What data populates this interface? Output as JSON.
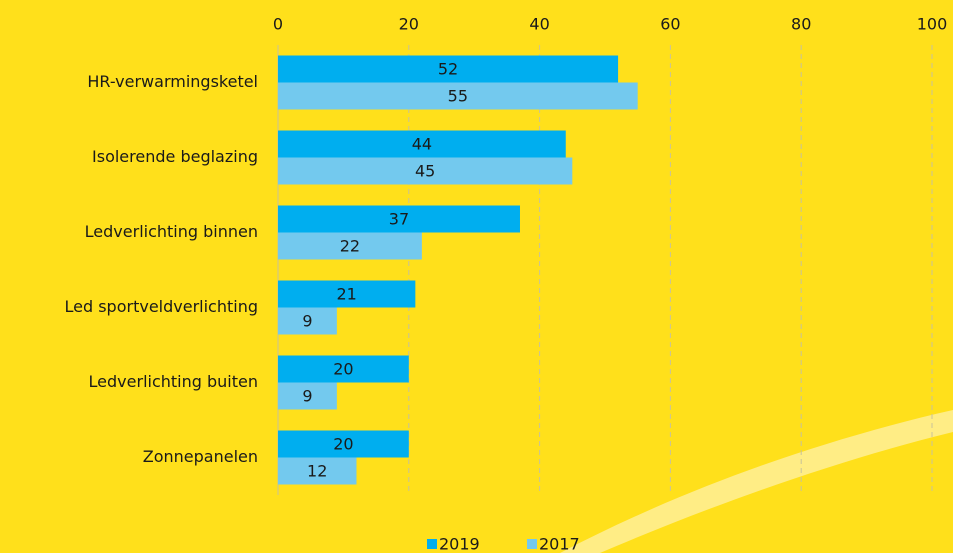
{
  "chart_data": {
    "type": "bar",
    "orientation": "horizontal",
    "categories": [
      "HR-verwarmingsketel",
      "Isolerende beglazing",
      "Ledverlichting binnen",
      "Led sportveldverlichting",
      "Ledverlichting buiten",
      "Zonnepanelen"
    ],
    "series": [
      {
        "name": "2019",
        "color": "#00aeef",
        "values": [
          52,
          44,
          37,
          21,
          20,
          20
        ]
      },
      {
        "name": "2017",
        "color": "#73c9ee",
        "values": [
          55,
          45,
          22,
          9,
          9,
          12
        ]
      }
    ],
    "xlim": [
      0,
      100
    ],
    "xticks": [
      0,
      20,
      40,
      60,
      80,
      100
    ],
    "grid": true,
    "legend": "bottom"
  }
}
